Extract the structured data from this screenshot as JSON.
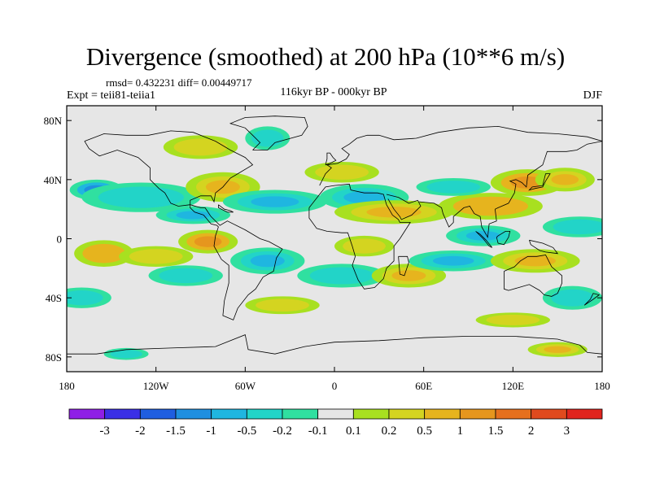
{
  "title": "Divergence (smoothed) at 200 hPa (10**6 m/s)",
  "stats": "rmsd= 0.432231 diff= 0.00449717",
  "experiment": "Expt = teii81-teiia1",
  "period": "116kyr BP - 000kyr BP",
  "season": "DJF",
  "map": {
    "lon_range": [
      -180,
      180
    ],
    "lat_range": [
      -90,
      90
    ],
    "background_color": "#e6e6e6",
    "x_ticks": [
      {
        "lon": -180,
        "label": "180"
      },
      {
        "lon": -120,
        "label": "120W"
      },
      {
        "lon": -60,
        "label": "60W"
      },
      {
        "lon": 0,
        "label": "0"
      },
      {
        "lon": 60,
        "label": "60E"
      },
      {
        "lon": 120,
        "label": "120E"
      },
      {
        "lon": 180,
        "label": "180"
      }
    ],
    "y_ticks": [
      {
        "lat": 80,
        "label": "80N"
      },
      {
        "lat": 40,
        "label": "40N"
      },
      {
        "lat": 0,
        "label": "0"
      },
      {
        "lat": -40,
        "label": "40S"
      },
      {
        "lat": -80,
        "label": "80S"
      }
    ]
  },
  "colorbar": {
    "colors": [
      "#8f1fe6",
      "#3a2fe6",
      "#1f5ee0",
      "#1f8fe0",
      "#1fb6e0",
      "#22d4c8",
      "#30e0a0",
      "#e6e6e6",
      "#a8e020",
      "#d4d420",
      "#e6b41e",
      "#e6961e",
      "#e6701e",
      "#e04a1e",
      "#e0241e"
    ],
    "labels": [
      "-3",
      "-2",
      "-1.5",
      "-1",
      "-0.5",
      "-0.2",
      "-0.1",
      "0.1",
      "0.2",
      "0.5",
      "1",
      "1.5",
      "2",
      "3"
    ]
  },
  "field_blobs": [
    {
      "lon": -160,
      "lat": 33,
      "rlon": 18,
      "rlat": 7,
      "value": -1.2
    },
    {
      "lon": -130,
      "lat": 28,
      "rlon": 40,
      "rlat": 10,
      "value": -0.5
    },
    {
      "lon": -90,
      "lat": 62,
      "rlon": 25,
      "rlat": 8,
      "value": 0.3
    },
    {
      "lon": -45,
      "lat": 68,
      "rlon": 15,
      "rlat": 8,
      "value": -0.3
    },
    {
      "lon": -75,
      "lat": 35,
      "rlon": 25,
      "rlat": 10,
      "value": 0.6
    },
    {
      "lon": -95,
      "lat": 16,
      "rlon": 25,
      "rlat": 6,
      "value": -0.7
    },
    {
      "lon": -40,
      "lat": 25,
      "rlon": 35,
      "rlat": 8,
      "value": -0.6
    },
    {
      "lon": 20,
      "lat": 28,
      "rlon": 30,
      "rlat": 9,
      "value": -0.7
    },
    {
      "lon": 5,
      "lat": 45,
      "rlon": 25,
      "rlat": 7,
      "value": 0.4
    },
    {
      "lon": 40,
      "lat": 18,
      "rlon": 40,
      "rlat": 8,
      "value": 0.8
    },
    {
      "lon": 105,
      "lat": 22,
      "rlon": 35,
      "rlat": 9,
      "value": 0.9
    },
    {
      "lon": 130,
      "lat": 38,
      "rlon": 25,
      "rlat": 9,
      "value": 1.4
    },
    {
      "lon": 80,
      "lat": 35,
      "rlon": 25,
      "rlat": 6,
      "value": -0.5
    },
    {
      "lon": 100,
      "lat": 2,
      "rlon": 25,
      "rlat": 7,
      "value": -0.6
    },
    {
      "lon": 165,
      "lat": 8,
      "rlon": 25,
      "rlat": 7,
      "value": -0.5
    },
    {
      "lon": 155,
      "lat": 40,
      "rlon": 20,
      "rlat": 8,
      "value": 0.6
    },
    {
      "lon": -155,
      "lat": -10,
      "rlon": 20,
      "rlat": 9,
      "value": 0.9
    },
    {
      "lon": -120,
      "lat": -12,
      "rlon": 25,
      "rlat": 7,
      "value": 0.4
    },
    {
      "lon": -85,
      "lat": -2,
      "rlon": 20,
      "rlat": 8,
      "value": 1.4
    },
    {
      "lon": -100,
      "lat": -25,
      "rlon": 25,
      "rlat": 7,
      "value": -0.4
    },
    {
      "lon": -45,
      "lat": -15,
      "rlon": 25,
      "rlat": 9,
      "value": -0.6
    },
    {
      "lon": 5,
      "lat": -25,
      "rlon": 30,
      "rlat": 8,
      "value": -0.4
    },
    {
      "lon": 20,
      "lat": -5,
      "rlon": 20,
      "rlat": 7,
      "value": 0.4
    },
    {
      "lon": 50,
      "lat": -25,
      "rlon": 25,
      "rlat": 8,
      "value": 0.5
    },
    {
      "lon": 80,
      "lat": -15,
      "rlon": 30,
      "rlat": 7,
      "value": -0.6
    },
    {
      "lon": 135,
      "lat": -15,
      "rlon": 30,
      "rlat": 8,
      "value": 0.7
    },
    {
      "lon": 160,
      "lat": -40,
      "rlon": 20,
      "rlat": 8,
      "value": -0.5
    },
    {
      "lon": -170,
      "lat": -40,
      "rlon": 20,
      "rlat": 7,
      "value": -0.4
    },
    {
      "lon": -35,
      "lat": -45,
      "rlon": 25,
      "rlat": 6,
      "value": 0.3
    },
    {
      "lon": 120,
      "lat": -55,
      "rlon": 25,
      "rlat": 5,
      "value": 0.3
    },
    {
      "lon": 150,
      "lat": -75,
      "rlon": 20,
      "rlat": 5,
      "value": 0.5
    },
    {
      "lon": -140,
      "lat": -78,
      "rlon": 15,
      "rlat": 4,
      "value": -0.3
    }
  ]
}
